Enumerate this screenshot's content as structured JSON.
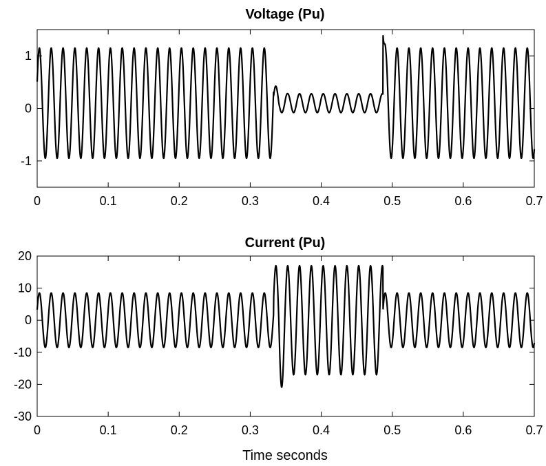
{
  "chart_data": [
    {
      "type": "line",
      "title": "Voltage (Pu)",
      "xlabel": "",
      "ylabel": "",
      "xlim": [
        0,
        0.7
      ],
      "ylim": [
        -1.5,
        1.5
      ],
      "xticks": [
        0,
        0.1,
        0.2,
        0.3,
        0.4,
        0.5,
        0.6,
        0.7
      ],
      "xtick_labels": [
        "0",
        "0.1",
        "0.2",
        "0.3",
        "0.4",
        "0.5",
        "0.6",
        "0.7"
      ],
      "yticks": [
        -1,
        0,
        1
      ],
      "ytick_labels": [
        "-1",
        "0",
        "1"
      ],
      "grid": false,
      "series": [
        {
          "frequency_hz": 50,
          "segments": [
            {
              "t_start": 0,
              "t_end": 0.333,
              "peak_max": 1.15,
              "peak_min": -0.95
            },
            {
              "t_start": 0.333,
              "t_end": 0.487,
              "peak_max": 0.28,
              "peak_min": -0.08,
              "initial_peak": 0.45
            },
            {
              "t_start": 0.487,
              "t_end": 0.7,
              "peak_max": 1.15,
              "peak_min": -0.95,
              "spike_peak": 1.4
            }
          ]
        }
      ]
    },
    {
      "type": "line",
      "title": "Current (Pu)",
      "xlabel": "Time seconds",
      "ylabel": "",
      "xlim": [
        0,
        0.7
      ],
      "ylim": [
        -30,
        20
      ],
      "xticks": [
        0,
        0.1,
        0.2,
        0.3,
        0.4,
        0.5,
        0.6,
        0.7
      ],
      "xtick_labels": [
        "0",
        "0.1",
        "0.2",
        "0.3",
        "0.4",
        "0.5",
        "0.6",
        "0.7"
      ],
      "yticks": [
        -30,
        -20,
        -10,
        0,
        10,
        20
      ],
      "ytick_labels": [
        "-30",
        "-20",
        "-10",
        "0",
        "10",
        "20"
      ],
      "grid": false,
      "series": [
        {
          "frequency_hz": 50,
          "segments": [
            {
              "t_start": 0,
              "t_end": 0.333,
              "peak_max": 8.5,
              "peak_min": -8.5
            },
            {
              "t_start": 0.333,
              "t_end": 0.487,
              "peak_max": 17,
              "peak_min": -17,
              "initial_trough": -26
            },
            {
              "t_start": 0.487,
              "t_end": 0.7,
              "peak_max": 8.5,
              "peak_min": -8.5
            }
          ]
        }
      ]
    }
  ]
}
